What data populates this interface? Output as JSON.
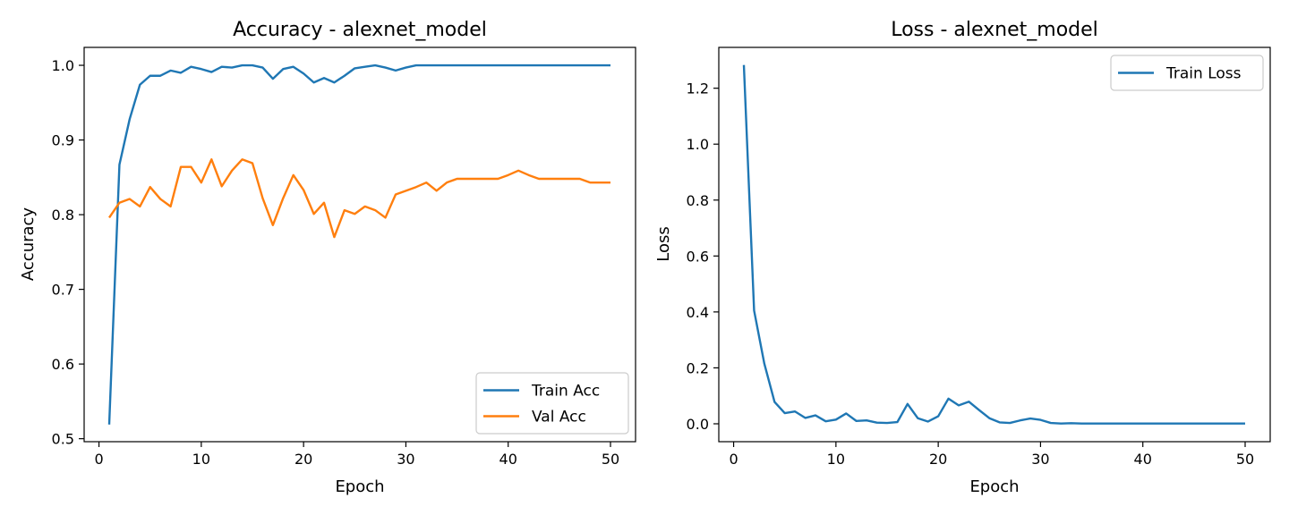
{
  "chart_data": [
    {
      "type": "line",
      "title": "Accuracy - alexnet_model",
      "xlabel": "Epoch",
      "ylabel": "Accuracy",
      "xlim": [
        -1.45,
        52.45
      ],
      "ylim": [
        0.496,
        1.024
      ],
      "xticks": [
        0,
        10,
        20,
        30,
        40,
        50
      ],
      "yticks": [
        0.5,
        0.6,
        0.7,
        0.8,
        0.9,
        1.0
      ],
      "ytick_labels": [
        "0.5",
        "0.6",
        "0.7",
        "0.8",
        "0.9",
        "1.0"
      ],
      "legend_position": "lower-right",
      "grid": false,
      "x": [
        1,
        2,
        3,
        4,
        5,
        6,
        7,
        8,
        9,
        10,
        11,
        12,
        13,
        14,
        15,
        16,
        17,
        18,
        19,
        20,
        21,
        22,
        23,
        24,
        25,
        26,
        27,
        28,
        29,
        30,
        31,
        32,
        33,
        34,
        35,
        36,
        37,
        38,
        39,
        40,
        41,
        42,
        43,
        44,
        45,
        46,
        47,
        48,
        49,
        50
      ],
      "series": [
        {
          "name": "Train Acc",
          "color": "#1f77b4",
          "values": [
            0.519,
            0.867,
            0.928,
            0.974,
            0.986,
            0.986,
            0.993,
            0.99,
            0.998,
            0.995,
            0.991,
            0.998,
            0.997,
            1.0,
            1.0,
            0.997,
            0.982,
            0.995,
            0.998,
            0.989,
            0.977,
            0.983,
            0.977,
            0.986,
            0.996,
            0.998,
            1.0,
            0.997,
            0.993,
            0.997,
            1.0,
            1.0,
            1.0,
            1.0,
            1.0,
            1.0,
            1.0,
            1.0,
            1.0,
            1.0,
            1.0,
            1.0,
            1.0,
            1.0,
            1.0,
            1.0,
            1.0,
            1.0,
            1.0,
            1.0
          ]
        },
        {
          "name": "Val Acc",
          "color": "#ff7f0e",
          "values": [
            0.796,
            0.816,
            0.821,
            0.811,
            0.837,
            0.821,
            0.811,
            0.864,
            0.864,
            0.843,
            0.874,
            0.838,
            0.859,
            0.874,
            0.869,
            0.822,
            0.786,
            0.822,
            0.853,
            0.833,
            0.801,
            0.816,
            0.77,
            0.806,
            0.801,
            0.811,
            0.806,
            0.796,
            0.827,
            0.832,
            0.837,
            0.843,
            0.832,
            0.843,
            0.848,
            0.848,
            0.848,
            0.848,
            0.848,
            0.853,
            0.859,
            0.853,
            0.848,
            0.848,
            0.848,
            0.848,
            0.848,
            0.843,
            0.843,
            0.843
          ]
        }
      ]
    },
    {
      "type": "line",
      "title": "Loss - alexnet_model",
      "xlabel": "Epoch",
      "ylabel": "Loss",
      "xlim": [
        -1.45,
        52.45
      ],
      "ylim": [
        -0.064,
        1.346
      ],
      "xticks": [
        0,
        10,
        20,
        30,
        40,
        50
      ],
      "yticks": [
        0.0,
        0.2,
        0.4,
        0.6,
        0.8,
        1.0,
        1.2
      ],
      "ytick_labels": [
        "0.0",
        "0.2",
        "0.4",
        "0.6",
        "0.8",
        "1.0",
        "1.2"
      ],
      "legend_position": "upper-right",
      "grid": false,
      "x": [
        1,
        2,
        3,
        4,
        5,
        6,
        7,
        8,
        9,
        10,
        11,
        12,
        13,
        14,
        15,
        16,
        17,
        18,
        19,
        20,
        21,
        22,
        23,
        24,
        25,
        26,
        27,
        28,
        29,
        30,
        31,
        32,
        33,
        34,
        35,
        36,
        37,
        38,
        39,
        40,
        41,
        42,
        43,
        44,
        45,
        46,
        47,
        48,
        49,
        50
      ],
      "series": [
        {
          "name": "Train Loss",
          "color": "#1f77b4",
          "values": [
            1.283,
            0.405,
            0.215,
            0.078,
            0.038,
            0.044,
            0.021,
            0.03,
            0.009,
            0.015,
            0.037,
            0.01,
            0.012,
            0.004,
            0.003,
            0.006,
            0.071,
            0.02,
            0.008,
            0.027,
            0.09,
            0.066,
            0.079,
            0.049,
            0.02,
            0.005,
            0.003,
            0.012,
            0.019,
            0.014,
            0.003,
            0.001,
            0.002,
            0.001,
            0.001,
            0.001,
            0.001,
            0.001,
            0.001,
            0.001,
            0.001,
            0.001,
            0.001,
            0.001,
            0.001,
            0.001,
            0.001,
            0.001,
            0.001,
            0.001
          ]
        }
      ]
    }
  ]
}
